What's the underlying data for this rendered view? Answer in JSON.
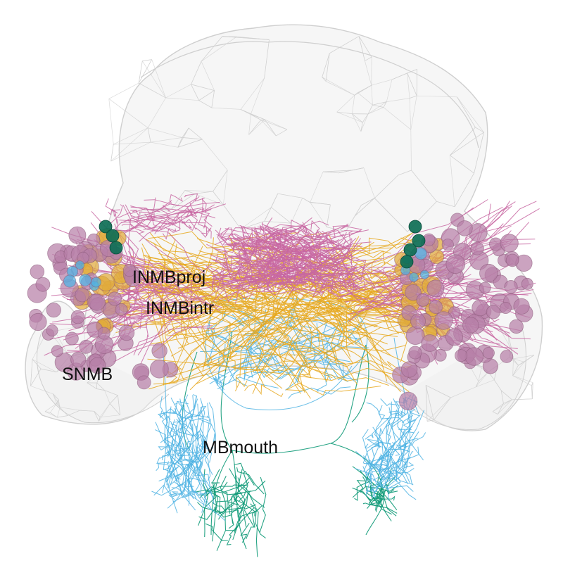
{
  "labels": {
    "inmbproj": "INMBproj",
    "inmbintr": "INMBintr",
    "snmb": "SNMB",
    "mbmouth": "MBmouth"
  },
  "colors": {
    "background": "#ffffff",
    "mesh": "#cfcfcf",
    "mesh_fill": "#eeeeee",
    "inmbproj": "#e6a81e",
    "inmbintr": "#4fb3e3",
    "snmb": "#c867a2",
    "snmb_soma": "#b77fa8",
    "mbmouth": "#0f9a78",
    "mbmouth_soma": "#0d6e55",
    "inmbproj_soma": "#e0aa3a"
  }
}
